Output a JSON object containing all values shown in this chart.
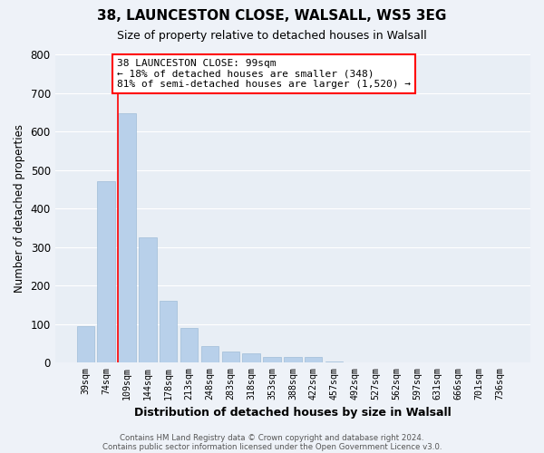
{
  "title1": "38, LAUNCESTON CLOSE, WALSALL, WS5 3EG",
  "title2": "Size of property relative to detached houses in Walsall",
  "xlabel": "Distribution of detached houses by size in Walsall",
  "ylabel": "Number of detached properties",
  "bar_labels": [
    "39sqm",
    "74sqm",
    "109sqm",
    "144sqm",
    "178sqm",
    "213sqm",
    "248sqm",
    "283sqm",
    "318sqm",
    "353sqm",
    "388sqm",
    "422sqm",
    "457sqm",
    "492sqm",
    "527sqm",
    "562sqm",
    "597sqm",
    "631sqm",
    "666sqm",
    "701sqm",
    "736sqm"
  ],
  "bar_values": [
    95,
    472,
    648,
    325,
    160,
    90,
    42,
    28,
    24,
    14,
    14,
    14,
    4,
    0,
    0,
    0,
    0,
    0,
    0,
    0,
    0
  ],
  "bar_color": "#b8d0ea",
  "bar_edge_color": "#9fbcd8",
  "property_line_x": 1.575,
  "annotation_line1": "38 LAUNCESTON CLOSE: 99sqm",
  "annotation_line2": "← 18% of detached houses are smaller (348)",
  "annotation_line3": "81% of semi-detached houses are larger (1,520) →",
  "footer1": "Contains HM Land Registry data © Crown copyright and database right 2024.",
  "footer2": "Contains public sector information licensed under the Open Government Licence v3.0.",
  "ylim": [
    0,
    800
  ],
  "yticks": [
    0,
    100,
    200,
    300,
    400,
    500,
    600,
    700,
    800
  ],
  "bg_color": "#eef2f8",
  "grid_color": "#ffffff",
  "plot_bg": "#e8eef5"
}
